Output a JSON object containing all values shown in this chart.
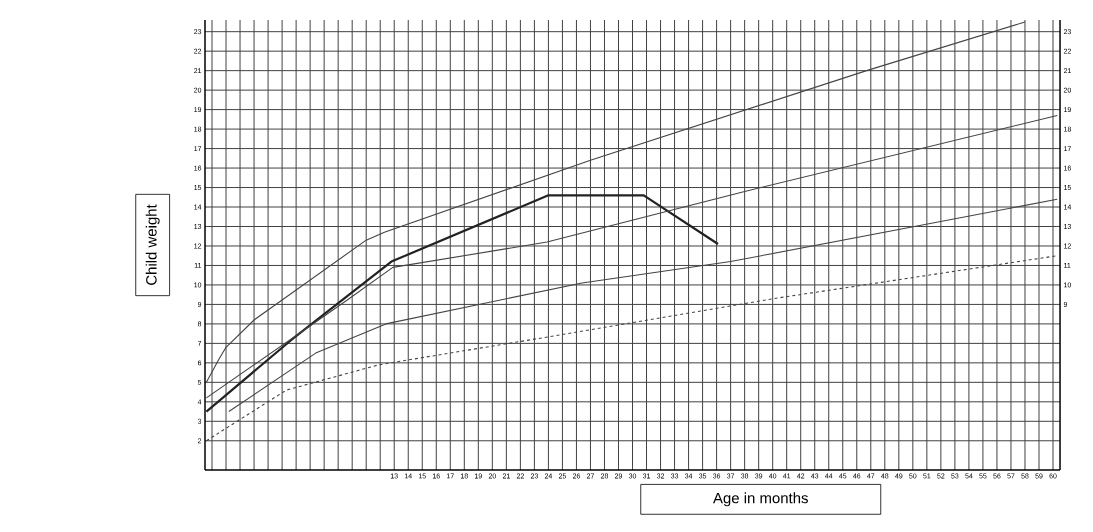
{
  "chart_data": {
    "type": "line",
    "xlabel": "Age in months",
    "ylabel": "Child weight",
    "series": [
      {
        "color": "#222222",
        "x": [
          -0.4,
          5.7,
          9.6,
          12.8,
          24,
          30.8,
          36.1
        ],
        "values": [
          3.5,
          7.2,
          9.4,
          11.2,
          14.6,
          14.6,
          12.1
        ]
      },
      {
        "color": "#444444",
        "x": [
          -0.4,
          0.5,
          1,
          3,
          11,
          12.3,
          27,
          46.7,
          58
        ],
        "values": [
          5,
          6.2,
          6.8,
          8.2,
          12.3,
          12.7,
          16.4,
          21,
          23.5
        ]
      },
      {
        "color": "#444444",
        "x": [
          -0.4,
          9.6,
          12.9,
          23.9,
          38,
          60.3
        ],
        "values": [
          4.2,
          9.2,
          10.9,
          12.2,
          14.8,
          18.7
        ]
      },
      {
        "color": "#444444",
        "x": [
          1.2,
          7.4,
          12.4,
          26.4,
          37,
          60.3
        ],
        "values": [
          3.5,
          6.5,
          8,
          10.1,
          11.2,
          14.4
        ]
      },
      {
        "color": "#444444",
        "x": [
          -0.4,
          5.3,
          11.9,
          23.7,
          40.1,
          60.3
        ],
        "values": [
          2,
          4.6,
          5.9,
          7.3,
          9.3,
          11.5
        ],
        "line_style": "dashed"
      }
    ],
    "xlim": [
      -0.5,
      60.5
    ],
    "ylim": [
      0.5,
      23.6
    ],
    "y2lim": [
      0.5,
      23.6
    ],
    "xticks": [
      {
        "value": 0,
        "label": null
      },
      {
        "value": 1,
        "label": null
      },
      {
        "value": 2,
        "label": null
      },
      {
        "value": 3,
        "label": null
      },
      {
        "value": 4,
        "label": null
      },
      {
        "value": 5,
        "label": null
      },
      {
        "value": 6,
        "label": null
      },
      {
        "value": 7,
        "label": null
      },
      {
        "value": 8,
        "label": null
      },
      {
        "value": 9,
        "label": null
      },
      {
        "value": 10,
        "label": null
      },
      {
        "value": 11,
        "label": null
      },
      {
        "value": 12,
        "label": null
      },
      13,
      14,
      15,
      16,
      17,
      18,
      19,
      20,
      21,
      22,
      23,
      24,
      25,
      26,
      27,
      28,
      29,
      30,
      31,
      32,
      33,
      34,
      35,
      36,
      37,
      38,
      39,
      40,
      41,
      42,
      43,
      44,
      45,
      46,
      47,
      48,
      49,
      50,
      51,
      52,
      53,
      54,
      55,
      56,
      57,
      58,
      59,
      60
    ],
    "yticks": [
      2,
      3,
      4,
      5,
      6,
      7,
      8,
      9,
      10,
      11,
      12,
      13,
      14,
      15,
      16,
      17,
      18,
      19,
      20,
      21,
      22,
      23
    ],
    "y2ticks": [
      9,
      10,
      11,
      12,
      13,
      14,
      15,
      16,
      17,
      18,
      19,
      20,
      21,
      22,
      23
    ],
    "grid": true
  }
}
